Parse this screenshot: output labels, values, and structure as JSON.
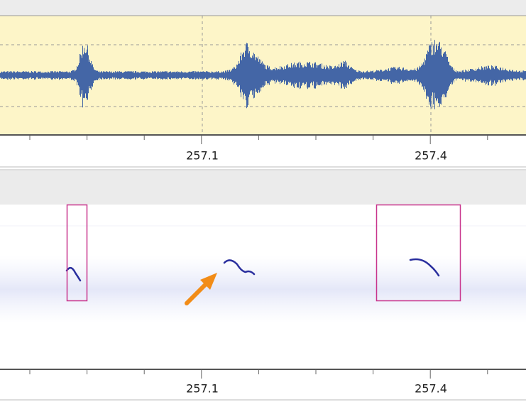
{
  "waveform_axis": {
    "labels": [
      "257.1",
      "257.4"
    ]
  },
  "spectrogram_axis": {
    "labels": [
      "257.1",
      "257.4"
    ]
  }
}
